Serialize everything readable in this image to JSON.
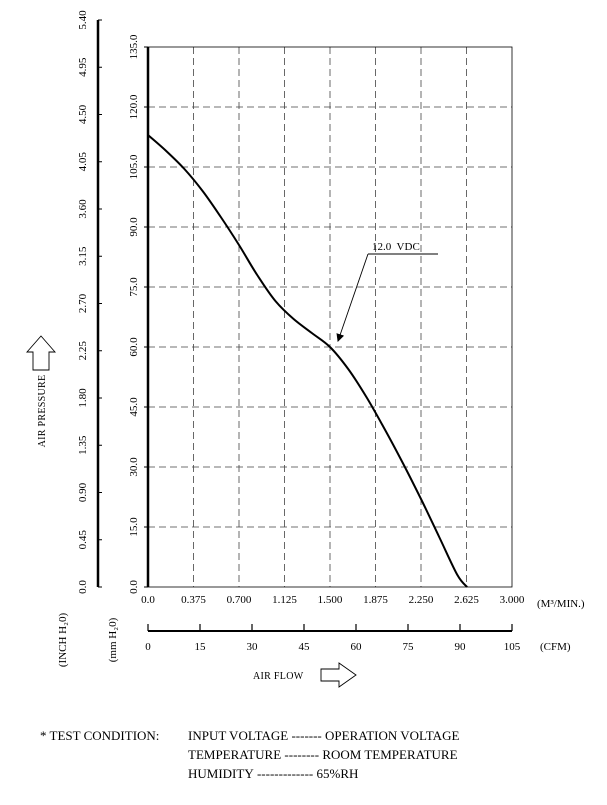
{
  "chart_data": {
    "type": "line",
    "series": [
      {
        "name": "12.0 VDC",
        "x": [
          0.0,
          0.15,
          0.3,
          0.45,
          0.6,
          0.75,
          0.9,
          1.05,
          1.2,
          1.35,
          1.5,
          1.65,
          1.8,
          1.95,
          2.1,
          2.25,
          2.4,
          2.55,
          2.63
        ],
        "y": [
          113.0,
          109.0,
          104.5,
          99.0,
          92.5,
          85.5,
          78.0,
          71.5,
          67.0,
          63.5,
          60.0,
          54.5,
          47.5,
          39.5,
          31.0,
          22.0,
          12.5,
          3.0,
          0.0
        ]
      }
    ],
    "xlim": [
      0,
      3.0
    ],
    "ylim": [
      0,
      135.0
    ],
    "x_ticks": [
      "0.0",
      "0.375",
      "0.700",
      "1.125",
      "1.500",
      "1.875",
      "2.250",
      "2.625",
      "3.000"
    ],
    "x_unit": "(M³/MIN.)",
    "cfm_ticks": [
      "0",
      "15",
      "30",
      "45",
      "60",
      "75",
      "90",
      "105"
    ],
    "cfm_unit": "(CFM)",
    "xlabel": "AIR FLOW",
    "y_ticks_mm": [
      "0.0",
      "15.0",
      "30.0",
      "45.0",
      "60.0",
      "75.0",
      "90.0",
      "105.0",
      "120.0",
      "135.0"
    ],
    "y_ticks_inch": [
      "0.0",
      "0.45",
      "0.90",
      "1.35",
      "1.80",
      "2.25",
      "2.70",
      "3.15",
      "3.60",
      "4.05",
      "4.50",
      "4.95",
      "5.40"
    ],
    "y_unit_mm": "(mm H₂0)",
    "y_unit_inch": "(INCH H₂0)",
    "ylabel": "AIR PRESSURE",
    "grid": true,
    "annotation": {
      "text": "12.0  VDC",
      "x": 1.53,
      "y": 61.0
    }
  },
  "test_condition": {
    "prefix": "* TEST CONDITION:",
    "rows": [
      {
        "item": "INPUT VOLTAGE",
        "dashes": " ------- ",
        "value": "OPERATION VOLTAGE"
      },
      {
        "item": "TEMPERATURE",
        "dashes": " -------- ",
        "value": "ROOM TEMPERATURE"
      },
      {
        "item": "HUMIDITY",
        "dashes": " ------------- ",
        "value": "65%RH"
      }
    ]
  }
}
